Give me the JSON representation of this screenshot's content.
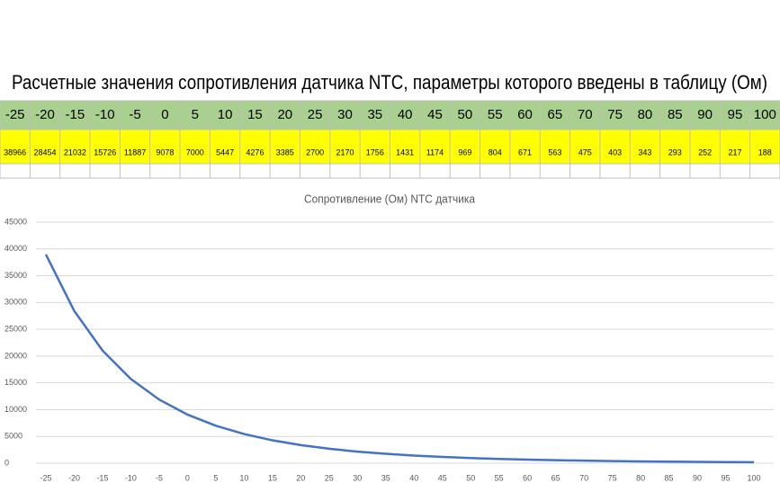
{
  "header": {
    "title": "Расчетные значения сопротивления датчика NTC, параметры которого введены в таблицу (Ом)"
  },
  "chart_data": {
    "type": "line",
    "title": "Сопротивление (Ом) NTC датчика",
    "categories": [
      -25,
      -20,
      -15,
      -10,
      -5,
      0,
      5,
      10,
      15,
      20,
      25,
      30,
      35,
      40,
      45,
      50,
      55,
      60,
      65,
      70,
      75,
      80,
      85,
      90,
      95,
      100
    ],
    "values": [
      38966,
      28454,
      21032,
      15726,
      11887,
      9078,
      7000,
      5447,
      4276,
      3385,
      2700,
      2170,
      1756,
      1431,
      1174,
      969,
      804,
      671,
      563,
      475,
      403,
      343,
      293,
      252,
      217,
      188
    ],
    "color": "#4472c4",
    "ylim": [
      0,
      45000
    ],
    "yticks": [
      0,
      5000,
      10000,
      15000,
      20000,
      25000,
      30000,
      35000,
      40000,
      45000
    ],
    "grid": true
  }
}
